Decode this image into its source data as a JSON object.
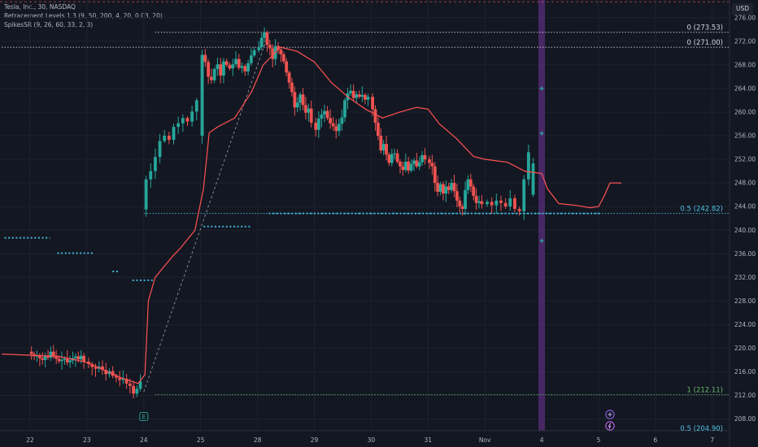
{
  "legend": {
    "symbol": "Tesla, Inc., 30, NASDAQ",
    "indicator_1": "Retracement Levels 1.3 (9, 50, 200, 4, 20, 0.03, 20)",
    "indicator_2": "SpikesSR (9, 26, 60, 33, 2, 3)"
  },
  "currency": "USD",
  "colors": {
    "background": "#131722",
    "up": "#26a69a",
    "down": "#ef5350",
    "baseline": "#ff5252",
    "support_dots": "#3fb6d6",
    "level_text_gray": "#d1d4dc",
    "level_text_cyan": "#4fc3e3",
    "level_text_green": "#66bb6a",
    "highlight_band": "#5a2e7a",
    "dashed": "#b2b5be"
  },
  "chart_data": {
    "type": "candlestick",
    "y_axis": {
      "min": 206,
      "max": 279,
      "ticks": [
        208,
        212,
        216,
        220,
        224,
        228,
        232,
        236,
        240,
        244,
        248,
        252,
        256,
        260,
        264,
        268,
        272,
        276
      ]
    },
    "x_axis": {
      "min": -0.5,
      "max": 13.4,
      "ticks": [
        {
          "label": "22",
          "x": 0
        },
        {
          "label": "23",
          "x": 1
        },
        {
          "label": "24",
          "x": 2
        },
        {
          "label": "25",
          "x": 3
        },
        {
          "label": "28",
          "x": 4
        },
        {
          "label": "29",
          "x": 5
        },
        {
          "label": "30",
          "x": 6
        },
        {
          "label": "31",
          "x": 7
        },
        {
          "label": "Nov",
          "x": 8
        },
        {
          "label": "4",
          "x": 9
        },
        {
          "label": "5",
          "x": 10
        },
        {
          "label": "6",
          "x": 11
        },
        {
          "label": "7",
          "x": 12
        }
      ]
    },
    "closes": [
      219.0,
      218.6,
      218.8,
      218.3,
      218.0,
      218.6,
      218.4,
      219.4,
      218.7,
      218.2,
      217.8,
      218.0,
      218.2,
      217.6,
      217.9,
      218.3,
      218.6,
      218.1,
      218.7,
      217.7,
      217.3,
      216.8,
      216.5,
      216.9,
      216.3,
      215.6,
      216.1,
      215.3,
      215.0,
      214.6,
      214.8,
      214.0,
      213.6,
      212.3,
      213.1,
      214.4,
      248.6,
      250.0,
      252.4,
      255.1,
      256.0,
      255.3,
      257.5,
      258.1,
      259.0,
      258.4,
      260.1,
      262.0,
      269.7,
      268.5,
      266.0,
      265.4,
      267.3,
      268.1,
      266.2,
      268.6,
      268.0,
      267.4,
      268.1,
      269.0,
      267.5,
      267.8,
      266.9,
      268.3,
      269.6,
      270.5,
      271.0,
      272.6,
      273.5,
      271.4,
      270.8,
      269.0,
      271.2,
      270.6,
      269.8,
      268.6,
      266.7,
      265.0,
      263.4,
      260.8,
      261.6,
      263.0,
      261.2,
      259.9,
      260.6,
      258.2,
      257.0,
      258.9,
      259.6,
      260.2,
      259.0,
      258.1,
      257.6,
      256.8,
      258.0,
      259.1,
      262.0,
      263.2,
      263.6,
      262.4,
      263.0,
      262.6,
      262.9,
      262.1,
      262.6,
      260.5,
      258.2,
      256.0,
      253.5,
      254.6,
      252.8,
      251.4,
      252.9,
      253.0,
      251.6,
      250.8,
      250.2,
      251.6,
      250.1,
      251.2,
      251.8,
      250.8,
      251.5,
      252.7,
      252.0,
      251.4,
      250.8,
      248.0,
      246.5,
      247.8,
      246.2,
      247.4,
      246.8,
      248.0,
      246.6,
      245.0,
      244.0,
      243.6,
      246.8,
      248.6,
      247.4,
      245.8,
      244.6,
      244.9,
      244.4,
      244.8,
      244.2,
      245.0,
      244.6,
      244.0,
      245.4,
      243.6,
      243.2,
      248.6,
      253.2,
      251.3
    ],
    "baseline": [
      [
        -0.5,
        219.0
      ],
      [
        0.5,
        218.6
      ],
      [
        1.0,
        217.6
      ],
      [
        1.6,
        215.0
      ],
      [
        1.9,
        214.0
      ],
      [
        2.02,
        215.5
      ],
      [
        2.08,
        228.0
      ],
      [
        2.2,
        232.0
      ],
      [
        2.5,
        235.5
      ],
      [
        2.65,
        237.0
      ],
      [
        2.9,
        240.0
      ],
      [
        3.05,
        247.0
      ],
      [
        3.15,
        256.5
      ],
      [
        3.3,
        257.5
      ],
      [
        3.6,
        259.0
      ],
      [
        3.9,
        263.5
      ],
      [
        4.1,
        268.0
      ],
      [
        4.25,
        269.5
      ],
      [
        4.4,
        271.0
      ],
      [
        4.7,
        270.3
      ],
      [
        5.0,
        268.5
      ],
      [
        5.3,
        265.0
      ],
      [
        5.6,
        262.5
      ],
      [
        5.9,
        260.5
      ],
      [
        6.2,
        259.0
      ],
      [
        6.5,
        260.0
      ],
      [
        6.8,
        260.8
      ],
      [
        7.0,
        260.5
      ],
      [
        7.2,
        258.0
      ],
      [
        7.5,
        255.5
      ],
      [
        7.8,
        252.5
      ],
      [
        8.0,
        252.0
      ],
      [
        8.4,
        251.5
      ],
      [
        8.7,
        250.0
      ],
      [
        9.0,
        249.6
      ],
      [
        9.1,
        247.0
      ],
      [
        9.3,
        244.5
      ],
      [
        9.6,
        244.2
      ],
      [
        9.85,
        243.8
      ],
      [
        10.0,
        244.0
      ],
      [
        10.1,
        245.8
      ],
      [
        10.2,
        248.0
      ],
      [
        10.4,
        248.0
      ]
    ],
    "fib_lines": [
      {
        "label": "0 (273.53)",
        "value": 273.53,
        "x_start": 2.2,
        "style": "dotted-gray"
      },
      {
        "label": "0 (271.00)",
        "value": 271.0,
        "x_start": -0.5,
        "style": "dotted-gray"
      },
      {
        "label": "0.5 (242.82)",
        "value": 242.82,
        "x_start": 2.0,
        "style": "dotted-cyan"
      },
      {
        "label": "1 (212.11)",
        "value": 212.11,
        "x_start": 2.2,
        "style": "dotted-green"
      },
      {
        "label": "0.5 (204.90)",
        "value": 204.9,
        "x_start": 11.0,
        "style": "dotted-cyan"
      }
    ],
    "support_segments": [
      {
        "value": 238.7,
        "x0": -0.45,
        "x1": 0.35
      },
      {
        "value": 236.1,
        "x0": 0.48,
        "x1": 1.12
      },
      {
        "value": 233.0,
        "x0": 1.45,
        "x1": 1.55
      },
      {
        "value": 231.5,
        "x0": 1.8,
        "x1": 2.18
      },
      {
        "value": 240.6,
        "x0": 3.05,
        "x1": 3.88
      },
      {
        "value": 242.82,
        "x0": 4.2,
        "x1": 10.05
      }
    ],
    "spike_markers": [
      {
        "x": 9.0,
        "y": 264.0
      },
      {
        "x": 9.0,
        "y": 256.4
      },
      {
        "x": 9.0,
        "y": 238.2
      }
    ],
    "dashed_segment": [
      [
        2.0,
        212.6
      ],
      [
        4.2,
        273.5
      ]
    ],
    "highlight_band": {
      "x": 9.0
    },
    "top_dashed_line": 278.7,
    "event_markers": [
      {
        "label": "E",
        "x": 2.0,
        "y": 208.4
      }
    ]
  }
}
